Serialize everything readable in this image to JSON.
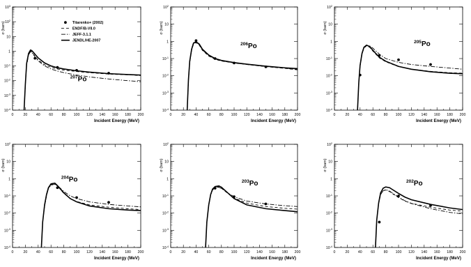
{
  "figure": {
    "legend": [
      {
        "label": "Titarenko+ (2002)",
        "style": "marker"
      },
      {
        "label": "ENDF/B-VII.0",
        "style": "dashed"
      },
      {
        "label": "JEFF-3.1.1",
        "style": "dashdot"
      },
      {
        "label": "JENDL/HE-2007",
        "style": "solid"
      }
    ],
    "line_color": "#000000"
  },
  "chart_data": [
    {
      "type": "line",
      "id": "po207",
      "annotation_mass": "207",
      "annotation_element": "Po",
      "xlabel": "Incident Energy (MeV)",
      "ylabel": "σ (barn)",
      "xlim": [
        0,
        200
      ],
      "ylim": [
        0.0001,
        1000
      ],
      "yscale": "log",
      "xticks": [
        0,
        20,
        40,
        60,
        80,
        100,
        120,
        140,
        160,
        180,
        200
      ],
      "yticks": [
        0.0001,
        0.001,
        0.01,
        0.1,
        1,
        10,
        100,
        1000
      ],
      "ytick_labels": [
        "10^-4",
        "10^-3",
        "10^-2",
        "10^-1",
        "1",
        "10",
        "10^2",
        "10^3"
      ],
      "show_legend": true,
      "experimental": {
        "name": "Titarenko+ (2002)",
        "x": [
          35,
          70,
          100,
          150
        ],
        "y": [
          0.33,
          0.08,
          0.05,
          0.032
        ]
      },
      "series": [
        {
          "name": "JENDL/HE-2007",
          "style": "solid",
          "x": [
            18,
            20,
            22,
            25,
            28,
            30,
            33,
            36,
            40,
            50,
            60,
            70,
            80,
            100,
            120,
            150,
            180,
            200
          ],
          "y": [
            0.0001,
            0.006,
            0.15,
            0.7,
            1.2,
            1.1,
            0.8,
            0.55,
            0.35,
            0.16,
            0.1,
            0.075,
            0.062,
            0.047,
            0.038,
            0.03,
            0.026,
            0.024
          ]
        },
        {
          "name": "ENDF/B-VII.0",
          "style": "dashed",
          "x": [
            18,
            20,
            22,
            25,
            28,
            30,
            33,
            36,
            40,
            50,
            60,
            70,
            80,
            100,
            120,
            150,
            180,
            200
          ],
          "y": [
            0.0001,
            0.005,
            0.12,
            0.6,
            1.0,
            0.9,
            0.6,
            0.4,
            0.25,
            0.12,
            0.08,
            0.062,
            0.052,
            0.042,
            0.035,
            0.028,
            0.025,
            0.022
          ]
        },
        {
          "name": "JEFF-3.1.1",
          "style": "dashdot",
          "x": [
            18,
            20,
            22,
            25,
            28,
            30,
            33,
            36,
            40,
            50,
            60,
            70,
            80,
            100,
            120,
            150,
            180,
            200
          ],
          "y": [
            0.0001,
            0.005,
            0.11,
            0.55,
            0.95,
            0.85,
            0.55,
            0.36,
            0.22,
            0.1,
            0.062,
            0.045,
            0.035,
            0.024,
            0.018,
            0.013,
            0.01,
            0.0085
          ]
        }
      ]
    },
    {
      "type": "line",
      "id": "po206",
      "annotation_mass": "206",
      "annotation_element": "Po",
      "xlabel": "Incident Energy (MeV)",
      "ylabel": "σ (barn)",
      "xlim": [
        0,
        200
      ],
      "ylim": [
        0.0001,
        100
      ],
      "yscale": "log",
      "xticks": [
        0,
        20,
        40,
        60,
        80,
        100,
        120,
        140,
        160,
        180,
        200
      ],
      "yticks": [
        0.0001,
        0.001,
        0.01,
        0.1,
        1,
        10,
        100
      ],
      "ytick_labels": [
        "10^-4",
        "10^-3",
        "10^-2",
        "10^-1",
        "1",
        "10",
        "10^2"
      ],
      "show_legend": false,
      "experimental": {
        "name": "Titarenko+ (2002)",
        "x": [
          40,
          70,
          100,
          150
        ],
        "y": [
          1.1,
          0.1,
          0.055,
          0.033
        ]
      },
      "series": [
        {
          "name": "JENDL/HE-2007",
          "style": "solid",
          "x": [
            26,
            28,
            30,
            33,
            36,
            40,
            45,
            50,
            60,
            70,
            80,
            100,
            120,
            150,
            180,
            200
          ],
          "y": [
            0.0001,
            0.006,
            0.07,
            0.35,
            0.8,
            0.95,
            0.7,
            0.35,
            0.16,
            0.1,
            0.078,
            0.058,
            0.047,
            0.036,
            0.029,
            0.026
          ]
        },
        {
          "name": "ENDF/B-VII.0",
          "style": "dashed",
          "x": [
            26,
            28,
            30,
            33,
            36,
            40,
            45,
            50,
            60,
            70,
            80,
            100,
            120,
            150,
            180,
            200
          ],
          "y": [
            0.0001,
            0.005,
            0.06,
            0.3,
            0.7,
            0.85,
            0.6,
            0.3,
            0.14,
            0.09,
            0.072,
            0.055,
            0.045,
            0.034,
            0.027,
            0.022
          ]
        },
        {
          "name": "JEFF-3.1.1",
          "style": "dashdot",
          "x": [
            26,
            28,
            30,
            33,
            36,
            40,
            45,
            50,
            60,
            70,
            80,
            100,
            120,
            150,
            180,
            200
          ],
          "y": [
            0.0001,
            0.005,
            0.06,
            0.32,
            0.75,
            0.9,
            0.65,
            0.32,
            0.15,
            0.095,
            0.075,
            0.056,
            0.046,
            0.035,
            0.028,
            0.023
          ]
        }
      ]
    },
    {
      "type": "line",
      "id": "po205",
      "annotation_mass": "205",
      "annotation_element": "Po",
      "xlabel": "Incident Energy (MeV)",
      "ylabel": "σ (barn)",
      "xlim": [
        0,
        200
      ],
      "ylim": [
        0.0001,
        100
      ],
      "yscale": "log",
      "xticks": [
        0,
        20,
        40,
        60,
        80,
        100,
        120,
        140,
        160,
        180,
        200
      ],
      "yticks": [
        0.0001,
        0.001,
        0.01,
        0.1,
        1,
        10,
        100
      ],
      "ytick_labels": [
        "10^-4",
        "10^-3",
        "10^-2",
        "10^-1",
        "1",
        "10",
        "10^2"
      ],
      "show_legend": false,
      "experimental": {
        "name": "Titarenko+ (2002)",
        "x": [
          40,
          70,
          100,
          150
        ],
        "y": [
          0.011,
          0.15,
          0.085,
          0.045
        ]
      },
      "series": [
        {
          "name": "JENDL/HE-2007",
          "style": "solid",
          "x": [
            36,
            38,
            40,
            43,
            46,
            50,
            55,
            60,
            70,
            80,
            100,
            120,
            150,
            180,
            200
          ],
          "y": [
            0.0001,
            0.004,
            0.04,
            0.2,
            0.45,
            0.6,
            0.5,
            0.3,
            0.12,
            0.07,
            0.035,
            0.024,
            0.017,
            0.014,
            0.013
          ]
        },
        {
          "name": "ENDF/B-VII.0",
          "style": "dashed",
          "x": [
            36,
            38,
            40,
            43,
            46,
            50,
            55,
            60,
            70,
            80,
            100,
            120,
            150,
            180,
            200
          ],
          "y": [
            0.0001,
            0.004,
            0.035,
            0.18,
            0.4,
            0.55,
            0.45,
            0.27,
            0.11,
            0.065,
            0.034,
            0.024,
            0.018,
            0.015,
            0.014
          ]
        },
        {
          "name": "JEFF-3.1.1",
          "style": "dashdot",
          "x": [
            36,
            38,
            40,
            43,
            46,
            50,
            55,
            60,
            70,
            80,
            100,
            120,
            150,
            180,
            200
          ],
          "y": [
            0.0001,
            0.004,
            0.035,
            0.18,
            0.42,
            0.6,
            0.55,
            0.4,
            0.18,
            0.1,
            0.06,
            0.045,
            0.035,
            0.028,
            0.024
          ]
        }
      ]
    },
    {
      "type": "line",
      "id": "po204",
      "annotation_mass": "204",
      "annotation_element": "Po",
      "xlabel": "Incident Energy (MeV)",
      "ylabel": "σ (barn)",
      "xlim": [
        0,
        200
      ],
      "ylim": [
        0.0001,
        100
      ],
      "yscale": "log",
      "xticks": [
        0,
        20,
        40,
        60,
        80,
        100,
        120,
        140,
        160,
        180,
        200
      ],
      "yticks": [
        0.0001,
        0.001,
        0.01,
        0.1,
        1,
        10,
        100
      ],
      "ytick_labels": [
        "10^-4",
        "10^-3",
        "10^-2",
        "10^-1",
        "1",
        "10",
        "10^2"
      ],
      "show_legend": false,
      "experimental": {
        "name": "Titarenko+ (2002)",
        "x": [
          70,
          100,
          150
        ],
        "y": [
          0.3,
          0.08,
          0.042
        ]
      },
      "series": [
        {
          "name": "JENDL/HE-2007",
          "style": "solid",
          "x": [
            45,
            47,
            50,
            53,
            56,
            60,
            66,
            70,
            80,
            90,
            100,
            120,
            150,
            180,
            200
          ],
          "y": [
            0.0001,
            0.003,
            0.03,
            0.12,
            0.3,
            0.5,
            0.55,
            0.4,
            0.15,
            0.07,
            0.045,
            0.026,
            0.018,
            0.015,
            0.014
          ]
        },
        {
          "name": "ENDF/B-VII.0",
          "style": "dashed",
          "x": [
            45,
            47,
            50,
            53,
            56,
            60,
            66,
            70,
            80,
            90,
            100,
            120,
            150,
            180,
            200
          ],
          "y": [
            0.0001,
            0.003,
            0.025,
            0.1,
            0.28,
            0.45,
            0.5,
            0.38,
            0.14,
            0.07,
            0.047,
            0.03,
            0.022,
            0.018,
            0.016
          ]
        },
        {
          "name": "JEFF-3.1.1",
          "style": "dashdot",
          "x": [
            45,
            47,
            50,
            53,
            56,
            60,
            66,
            70,
            80,
            90,
            100,
            120,
            150,
            180,
            200
          ],
          "y": [
            0.0001,
            0.003,
            0.025,
            0.1,
            0.27,
            0.42,
            0.48,
            0.4,
            0.18,
            0.1,
            0.07,
            0.045,
            0.032,
            0.026,
            0.023
          ]
        }
      ]
    },
    {
      "type": "line",
      "id": "po203",
      "annotation_mass": "203",
      "annotation_element": "Po",
      "xlabel": "Incident Energy (MeV)",
      "ylabel": "σ (barn)",
      "xlim": [
        0,
        200
      ],
      "ylim": [
        0.0001,
        100
      ],
      "yscale": "log",
      "xticks": [
        0,
        20,
        40,
        60,
        80,
        100,
        120,
        140,
        160,
        180,
        200
      ],
      "yticks": [
        0.0001,
        0.001,
        0.01,
        0.1,
        1,
        10,
        100
      ],
      "ytick_labels": [
        "10^-4",
        "10^-3",
        "10^-2",
        "10^-1",
        "1",
        "10",
        "10^2"
      ],
      "show_legend": false,
      "experimental": {
        "name": "Titarenko+ (2002)",
        "x": [
          70,
          100,
          150
        ],
        "y": [
          0.28,
          0.09,
          0.034
        ]
      },
      "series": [
        {
          "name": "JENDL/HE-2007",
          "style": "solid",
          "x": [
            55,
            57,
            60,
            63,
            66,
            70,
            76,
            80,
            90,
            100,
            120,
            150,
            180,
            200
          ],
          "y": [
            0.0001,
            0.003,
            0.03,
            0.12,
            0.25,
            0.35,
            0.38,
            0.32,
            0.15,
            0.07,
            0.03,
            0.018,
            0.014,
            0.012
          ]
        },
        {
          "name": "ENDF/B-VII.0",
          "style": "dashed",
          "x": [
            55,
            57,
            60,
            63,
            66,
            70,
            76,
            80,
            90,
            100,
            120,
            150,
            180,
            200
          ],
          "y": [
            0.0001,
            0.003,
            0.028,
            0.11,
            0.23,
            0.32,
            0.34,
            0.28,
            0.14,
            0.075,
            0.038,
            0.024,
            0.019,
            0.017
          ]
        },
        {
          "name": "JEFF-3.1.1",
          "style": "dashdot",
          "x": [
            55,
            57,
            60,
            63,
            66,
            70,
            76,
            80,
            90,
            100,
            120,
            150,
            180,
            200
          ],
          "y": [
            0.0001,
            0.003,
            0.028,
            0.11,
            0.22,
            0.3,
            0.32,
            0.27,
            0.15,
            0.09,
            0.05,
            0.034,
            0.027,
            0.024
          ]
        }
      ]
    },
    {
      "type": "line",
      "id": "po202",
      "annotation_mass": "202",
      "annotation_element": "Po",
      "xlabel": "Incident Energy (MeV)",
      "ylabel": "σ (barn)",
      "xlim": [
        0,
        200
      ],
      "ylim": [
        0.0001,
        100
      ],
      "yscale": "log",
      "xticks": [
        0,
        20,
        40,
        60,
        80,
        100,
        120,
        140,
        160,
        180,
        200
      ],
      "yticks": [
        0.0001,
        0.001,
        0.01,
        0.1,
        1,
        10,
        100
      ],
      "ytick_labels": [
        "10^-4",
        "10^-3",
        "10^-2",
        "10^-1",
        "1",
        "10",
        "10^2"
      ],
      "show_legend": false,
      "experimental": {
        "name": "Titarenko+ (2002)",
        "x": [
          70,
          100,
          150
        ],
        "y": [
          0.003,
          0.1,
          0.028
        ]
      },
      "series": [
        {
          "name": "JENDL/HE-2007",
          "style": "solid",
          "x": [
            64,
            66,
            69,
            72,
            76,
            80,
            86,
            90,
            100,
            110,
            120,
            150,
            180,
            200
          ],
          "y": [
            0.0001,
            0.004,
            0.04,
            0.15,
            0.28,
            0.33,
            0.3,
            0.24,
            0.14,
            0.085,
            0.06,
            0.032,
            0.02,
            0.016
          ]
        },
        {
          "name": "ENDF/B-VII.0",
          "style": "dashed",
          "x": [
            64,
            66,
            69,
            72,
            76,
            80,
            86,
            90,
            100,
            110,
            120,
            150,
            180,
            200
          ],
          "y": [
            0.0001,
            0.004,
            0.035,
            0.12,
            0.2,
            0.22,
            0.18,
            0.14,
            0.08,
            0.05,
            0.037,
            0.022,
            0.015,
            0.013
          ]
        },
        {
          "name": "JEFF-3.1.1",
          "style": "dashdot",
          "x": [
            64,
            66,
            69,
            72,
            76,
            80,
            86,
            90,
            100,
            110,
            120,
            150,
            180,
            200
          ],
          "y": [
            0.0001,
            0.004,
            0.035,
            0.12,
            0.2,
            0.23,
            0.19,
            0.15,
            0.085,
            0.052,
            0.036,
            0.018,
            0.011,
            0.009
          ]
        }
      ]
    }
  ]
}
